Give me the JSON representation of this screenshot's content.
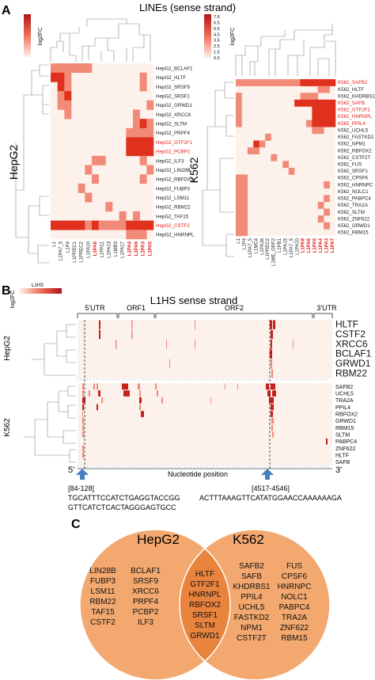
{
  "panelA": {
    "letter": "A",
    "title": "LINEs (sense strand)",
    "scale_label": "log2FC",
    "left_scale_ticks": [],
    "right_scale_ticks": [
      "7.5",
      "6.5",
      "5.5",
      "4.5",
      "3.5",
      "2.5",
      "1.5",
      "0.5"
    ],
    "hepg2_group_label": "HepG2",
    "k562_group_label": "K562",
    "hepg2_rows": [
      {
        "label": "HepG2_BCLAF1",
        "highlight": false
      },
      {
        "label": "HepG2_HLTF",
        "highlight": false
      },
      {
        "label": "HepG2_SRSF9",
        "highlight": false
      },
      {
        "label": "HepG2_SRSF1",
        "highlight": false
      },
      {
        "label": "HepG2_GRWD1",
        "highlight": false
      },
      {
        "label": "HepG2_XRCC6",
        "highlight": false
      },
      {
        "label": "HepG2_SLTM",
        "highlight": false
      },
      {
        "label": "HepG2_PRPF4",
        "highlight": false
      },
      {
        "label": "HepG2_GTF2F1",
        "highlight": true
      },
      {
        "label": "HepG2_PCBP2",
        "highlight": true
      },
      {
        "label": "HepG2_ILF3",
        "highlight": false
      },
      {
        "label": "HepG2_LIN28B",
        "highlight": false
      },
      {
        "label": "HepG2_RBFOX2",
        "highlight": false
      },
      {
        "label": "HepG2_FUBP3",
        "highlight": false
      },
      {
        "label": "HepG2_LSM11",
        "highlight": false
      },
      {
        "label": "HepG2_RBM22",
        "highlight": false
      },
      {
        "label": "HepG2_TAF15",
        "highlight": false
      },
      {
        "label": "HepG2_CSTF2",
        "highlight": true
      },
      {
        "label": "HepG2_HNRNPL",
        "highlight": false
      }
    ],
    "hepg2_cols": [
      {
        "label": "L1",
        "highlight": false
      },
      {
        "label": "L1PA7_5",
        "highlight": false
      },
      {
        "label": "L1P4",
        "highlight": false
      },
      {
        "label": "L1PREC1",
        "highlight": false
      },
      {
        "label": "L1PREC2",
        "highlight": false
      },
      {
        "label": "L1PA10",
        "highlight": false
      },
      {
        "label": "L1PA8",
        "highlight": true
      },
      {
        "label": "L1PA11",
        "highlight": false
      },
      {
        "label": "L1PA13",
        "highlight": false
      },
      {
        "label": "L1MB3",
        "highlight": false
      },
      {
        "label": "L1PA17",
        "highlight": false
      },
      {
        "label": "L1PA4",
        "highlight": true
      },
      {
        "label": "L1PA6",
        "highlight": true
      },
      {
        "label": "L1PA3",
        "highlight": true
      },
      {
        "label": "L1PA5",
        "highlight": true
      }
    ],
    "k562_rows": [
      {
        "label": "K562_SAFB2",
        "highlight": true
      },
      {
        "label": "K562_HLTF",
        "highlight": false
      },
      {
        "label": "K562_KHDRBS1",
        "highlight": false
      },
      {
        "label": "K562_SAFB",
        "highlight": true
      },
      {
        "label": "K562_GTF2F1",
        "highlight": true
      },
      {
        "label": "K562_HNRNPL",
        "highlight": true
      },
      {
        "label": "K562_PPIL4",
        "highlight": true
      },
      {
        "label": "K562_UCHL5",
        "highlight": false
      },
      {
        "label": "K562_FASTKD2",
        "highlight": false
      },
      {
        "label": "K562_NPM1",
        "highlight": false
      },
      {
        "label": "K562_RBFOX2",
        "highlight": false
      },
      {
        "label": "K562_CSTF2T",
        "highlight": false
      },
      {
        "label": "K562_FUS",
        "highlight": false
      },
      {
        "label": "K562_SRSF1",
        "highlight": false
      },
      {
        "label": "K562_CPSF6",
        "highlight": false
      },
      {
        "label": "K562_HNRNPC",
        "highlight": false
      },
      {
        "label": "K562_NOLC1",
        "highlight": false
      },
      {
        "label": "K562_PABPC4",
        "highlight": false
      },
      {
        "label": "K562_TRA2A",
        "highlight": false
      },
      {
        "label": "K562_SLTM",
        "highlight": false
      },
      {
        "label": "K562_ZNF622",
        "highlight": false
      },
      {
        "label": "K562_GRWD1",
        "highlight": false
      },
      {
        "label": "K562_RBM15",
        "highlight": false
      }
    ],
    "k562_cols": [
      {
        "label": "L1",
        "highlight": false
      },
      {
        "label": "L1P4",
        "highlight": false
      },
      {
        "label": "L1PA7_5",
        "highlight": false
      },
      {
        "label": "L1MC4",
        "highlight": false
      },
      {
        "label": "L1PA16",
        "highlight": false
      },
      {
        "label": "L1PREC2",
        "highlight": false
      },
      {
        "label": "L1ME_ORF2",
        "highlight": false
      },
      {
        "label": "L1PB1",
        "highlight": false
      },
      {
        "label": "L1PA15",
        "highlight": false
      },
      {
        "label": "L1PA7_5",
        "highlight": false
      },
      {
        "label": "L1PA10",
        "highlight": false
      },
      {
        "label": "L1PA8",
        "highlight": true
      },
      {
        "label": "L1PA6",
        "highlight": true
      },
      {
        "label": "L1PA5",
        "highlight": true
      },
      {
        "label": "L1PA4",
        "highlight": true
      },
      {
        "label": "L1PA3",
        "highlight": true
      },
      {
        "label": "L1PA7",
        "highlight": true
      }
    ]
  },
  "panelB": {
    "letter": "B",
    "title": "L1HS sense strand",
    "scale_label": "log2FC",
    "scale_sub": "L1HS",
    "regions": [
      "5'UTR",
      "ORF1",
      "ORF2",
      "3'UTR"
    ],
    "hepg2_label": "HepG2",
    "k562_label": "K562",
    "hepg2_rows": [
      "HLTF",
      "CSTF2",
      "XRCC6",
      "BCLAF1",
      "GRWD1",
      "RBM22"
    ],
    "k562_rows": [
      "SAFB2",
      "UCHL5",
      "TRA2A",
      "PPIL4",
      "RBFOX2",
      "GRWD1",
      "RBM15",
      "SLTM",
      "PABPC4",
      "ZNF622",
      "HLTF",
      "SAFB"
    ],
    "five_prime": "5'",
    "three_prime": "3'",
    "xlabel": "Nucleotide position",
    "motif_left_range": "[84-128]",
    "motif_left_seq1": "TGCATTTCCATCTGAGGTACCGG",
    "motif_left_seq2": "GTTCATCTCACTAGGGAGTGCC",
    "motif_right_range": "[4517-4546]",
    "motif_right_seq": "ACTTTAAAGTTCATATGGAACCAAAAAAGA"
  },
  "panelC": {
    "letter": "C",
    "left_title": "HepG2",
    "right_title": "K562",
    "left_col1": [
      "LIN28B",
      "FUBP3",
      "LSM11",
      "RBM22",
      "TAF15",
      "CSTF2"
    ],
    "left_col2": [
      "BCLAF1",
      "SRSF9",
      "XRCC6",
      "PRPF4",
      "PCBP2",
      "ILF3"
    ],
    "center": [
      "HLTF",
      "GTF2F1",
      "HNRNPL",
      "RBFOX2",
      "SRSF1",
      "SLTM",
      "GRWD1"
    ],
    "right_col1": [
      "SAFB2",
      "SAFB",
      "KHDRBS1",
      "PPIL4",
      "UCHL5",
      "FASTKD2",
      "NPM1",
      "CSTF2T"
    ],
    "right_col2": [
      "FUS",
      "CPSF6",
      "HNRNPC",
      "NOLC1",
      "PABPC4",
      "TRA2A",
      "ZNF622",
      "RBM15"
    ],
    "colors": {
      "circle": "#f2a86e",
      "overlap": "#e8843e",
      "outline": "#ffffff"
    }
  },
  "colors": {
    "heat_bg": "#fdf1ec",
    "heat_hot": "#e0301e",
    "heat_mid": "#f28a78",
    "highlight_text": "#e0201a",
    "arrow": "#4a7fc1"
  }
}
